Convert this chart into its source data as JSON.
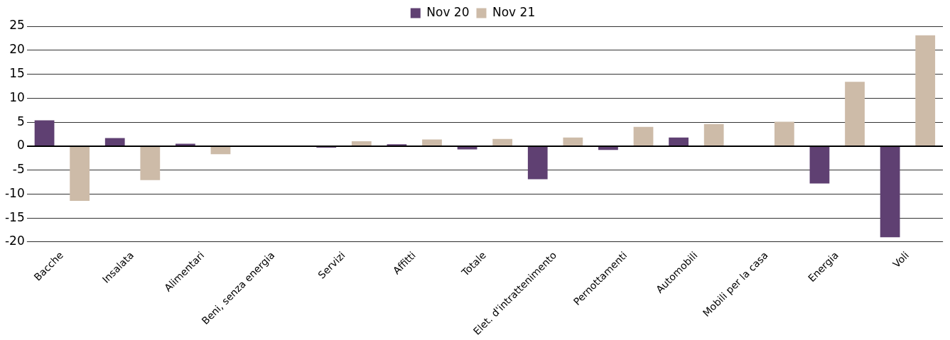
{
  "chart_data": {
    "type": "bar",
    "categories": [
      "Bacche",
      "Insalata",
      "Alimentari",
      "Beni, senza energia",
      "Servizi",
      "Affitti",
      "Totale",
      "Elet. d'intrattenimento",
      "Pernottamenti",
      "Automobili",
      "Mobili per la casa",
      "Energia",
      "Voli"
    ],
    "series": [
      {
        "name": "Nov 20",
        "color": "#5f4072",
        "values": [
          5.4,
          1.7,
          0.5,
          0,
          -0.3,
          0.4,
          -0.7,
          -6.9,
          -0.8,
          1.8,
          null,
          -7.8,
          -19.0
        ]
      },
      {
        "name": "Nov 21",
        "color": "#cdbba8",
        "values": [
          -11.4,
          -7.1,
          -1.7,
          0,
          1.0,
          1.4,
          1.5,
          1.8,
          4.0,
          4.6,
          5.1,
          13.4,
          23.1
        ]
      }
    ],
    "ylim": [
      -20,
      25
    ],
    "yticks": [
      -20,
      -15,
      -10,
      -5,
      0,
      5,
      10,
      15,
      20,
      25
    ],
    "grid": "y",
    "legend": "top"
  }
}
